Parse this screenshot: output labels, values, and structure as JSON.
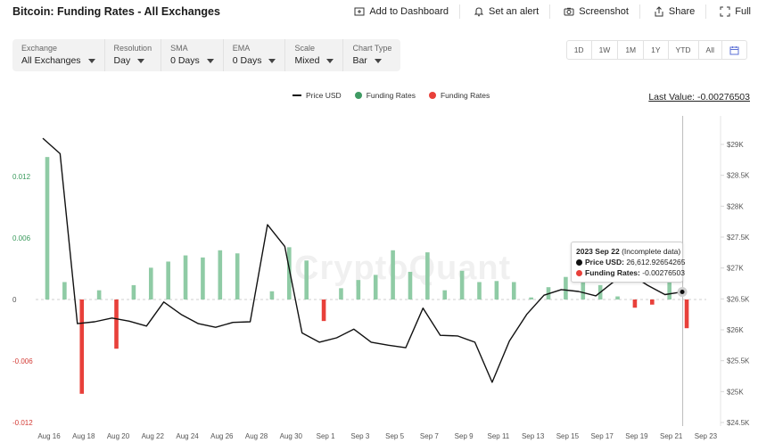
{
  "header": {
    "title": "Bitcoin: Funding Rates - All Exchanges",
    "actions": [
      {
        "label": "Add to Dashboard",
        "icon": "add-dashboard-icon"
      },
      {
        "label": "Set an alert",
        "icon": "bell-icon"
      },
      {
        "label": "Screenshot",
        "icon": "camera-icon"
      },
      {
        "label": "Share",
        "icon": "share-icon"
      },
      {
        "label": "Full",
        "icon": "fullscreen-icon"
      }
    ]
  },
  "controls": [
    {
      "label": "Exchange",
      "value": "All Exchanges"
    },
    {
      "label": "Resolution",
      "value": "Day"
    },
    {
      "label": "SMA",
      "value": "0 Days"
    },
    {
      "label": "EMA",
      "value": "0 Days"
    },
    {
      "label": "Scale",
      "value": "Mixed"
    },
    {
      "label": "Chart Type",
      "value": "Bar"
    }
  ],
  "ranges": [
    "1D",
    "1W",
    "1M",
    "1Y",
    "YTD",
    "All"
  ],
  "calendar_icon": "calendar-icon",
  "last_value": "Last Value: -0.00276503",
  "watermark": "CryptoQuant",
  "tooltip": {
    "date": "2023 Sep 22",
    "note": "(Incomplete data)",
    "price_label": "Price USD:",
    "price_value": "26,612.92654265",
    "rate_label": "Funding Rates:",
    "rate_value": "-0.00276503"
  },
  "colors": {
    "positive": "#8fcba5",
    "negative": "#e8403a",
    "price": "#111111",
    "left_axis_positive": "#3a9a5c",
    "left_axis_negative": "#d33b35"
  },
  "chart_data": {
    "type": "bar",
    "legend": [
      "Price USD",
      "Funding Rates",
      "Funding Rates"
    ],
    "x_tick_labels": [
      "Aug 16",
      "Aug 18",
      "Aug 20",
      "Aug 22",
      "Aug 24",
      "Aug 26",
      "Aug 28",
      "Aug 30",
      "Sep 1",
      "Sep 3",
      "Sep 5",
      "Sep 7",
      "Sep 9",
      "Sep 11",
      "Sep 13",
      "Sep 15",
      "Sep 17",
      "Sep 19",
      "Sep 21",
      "Sep 23"
    ],
    "left_axis": {
      "ticks": [
        "0.012",
        "0.006",
        "0",
        "-0.006",
        "-0.012"
      ],
      "ylim": [
        -0.012,
        0.012
      ]
    },
    "right_axis": {
      "ticks": [
        "$29K",
        "$28.5K",
        "$28K",
        "$27.5K",
        "$27K",
        "$26.5K",
        "$26K",
        "$25.5K",
        "$25K",
        "$24.5K"
      ],
      "ylim": [
        24500,
        29000
      ]
    },
    "dates": [
      "Aug 16",
      "Aug 17",
      "Aug 18",
      "Aug 19",
      "Aug 20",
      "Aug 21",
      "Aug 22",
      "Aug 23",
      "Aug 24",
      "Aug 25",
      "Aug 26",
      "Aug 27",
      "Aug 28",
      "Aug 29",
      "Aug 30",
      "Aug 31",
      "Sep 1",
      "Sep 2",
      "Sep 3",
      "Sep 4",
      "Sep 5",
      "Sep 6",
      "Sep 7",
      "Sep 8",
      "Sep 9",
      "Sep 10",
      "Sep 11",
      "Sep 12",
      "Sep 13",
      "Sep 14",
      "Sep 15",
      "Sep 16",
      "Sep 17",
      "Sep 18",
      "Sep 19",
      "Sep 20",
      "Sep 21",
      "Sep 22"
    ],
    "series": [
      {
        "name": "Funding Rates",
        "axis": "left",
        "values": [
          0.0139,
          0.0017,
          -0.0092,
          0.0009,
          -0.0048,
          0.0014,
          0.0031,
          0.0037,
          0.0043,
          0.0041,
          0.0048,
          0.0045,
          0.0,
          0.0008,
          0.0051,
          0.0038,
          -0.0021,
          0.0011,
          0.0019,
          0.0024,
          0.0048,
          0.0027,
          0.0046,
          0.0009,
          0.0028,
          0.0017,
          0.0018,
          0.0017,
          0.0002,
          0.0012,
          0.0022,
          0.0017,
          0.0014,
          0.0003,
          -0.0008,
          -0.0005,
          0.0027,
          -0.0028
        ]
      },
      {
        "name": "Price USD",
        "axis": "right",
        "values": [
          29100,
          28850,
          26100,
          26130,
          26190,
          26140,
          26060,
          26450,
          26250,
          26100,
          26040,
          26120,
          26130,
          27700,
          27350,
          25950,
          25800,
          25870,
          26010,
          25800,
          25750,
          25710,
          26350,
          25910,
          25900,
          25800,
          25150,
          25820,
          26250,
          26560,
          26650,
          26620,
          26550,
          26770,
          26900,
          26720,
          26570,
          26612.93
        ]
      }
    ]
  }
}
